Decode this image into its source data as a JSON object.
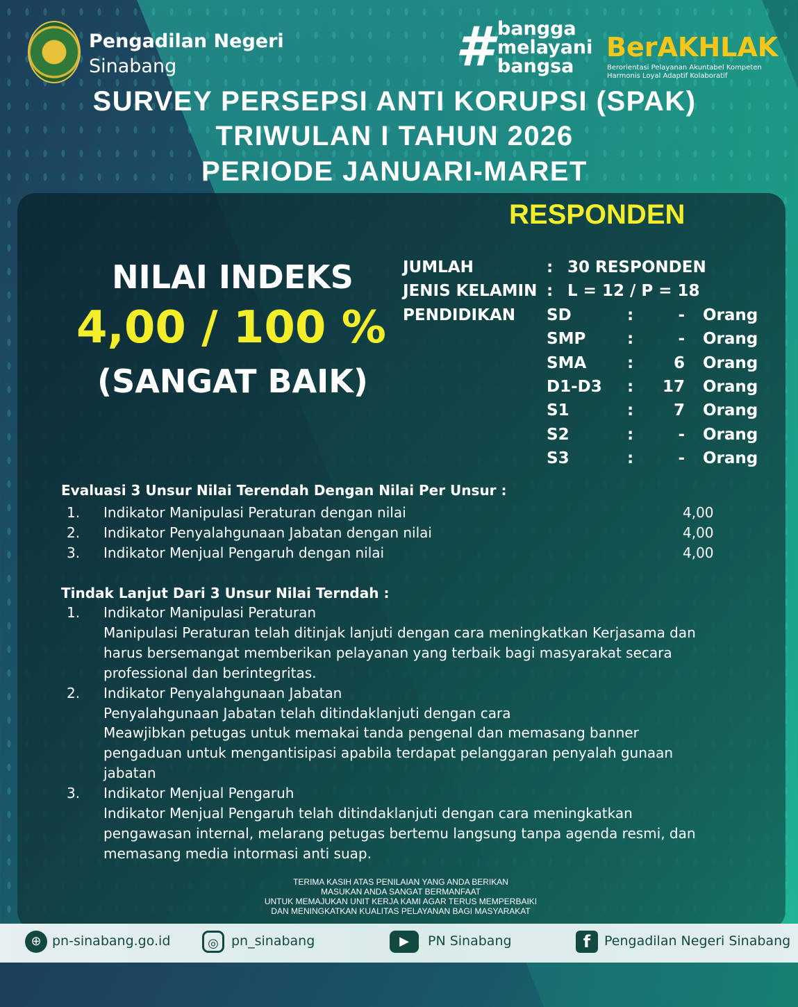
{
  "header": {
    "org_line1": "Pengadilan Negeri",
    "org_line2": "Sinabang",
    "bangga": [
      "bangga",
      "melayani",
      "bangsa"
    ],
    "berakhlak": "BerAKHLAK",
    "berakhlak_sub1": "Berorientasi Pelayanan Akuntabel Kompeten",
    "berakhlak_sub2": "Harmonis Loyal Adaptif Kolaboratif"
  },
  "title": [
    "SURVEY PERSEPSI ANTI KORUPSI (SPAK)",
    "TRIWULAN I TAHUN 2026",
    "PERIODE JANUARI-MARET"
  ],
  "index": {
    "label": "NILAI INDEKS",
    "value": "4,00 / 100 %",
    "category": "(SANGAT BAIK)"
  },
  "responden": {
    "heading": "RESPONDEN",
    "rows": [
      {
        "label": "JUMLAH",
        "colon": ":",
        "value": "30  RESPONDEN"
      },
      {
        "label": "JENIS KELAMIN",
        "colon": ":",
        "value": "L = 12 / P = 18"
      }
    ],
    "pendidikan_label": "PENDIDIKAN",
    "pendidikan": [
      {
        "level": "SD",
        "count": "-",
        "unit": "Orang"
      },
      {
        "level": "SMP",
        "count": "-",
        "unit": "Orang"
      },
      {
        "level": "SMA",
        "count": "6",
        "unit": "Orang"
      },
      {
        "level": "D1-D3",
        "count": "17",
        "unit": "Orang"
      },
      {
        "level": "S1",
        "count": "7",
        "unit": "Orang"
      },
      {
        "level": "S2",
        "count": "-",
        "unit": "Orang"
      },
      {
        "level": "S3",
        "count": "-",
        "unit": "Orang"
      }
    ]
  },
  "evaluasi": {
    "heading": "Evaluasi 3 Unsur Nilai Terendah Dengan Nilai Per Unsur :",
    "items": [
      {
        "num": "1.",
        "text": "Indikator Manipulasi Peraturan dengan nilai",
        "value": "4,00"
      },
      {
        "num": "2.",
        "text": "Indikator Penyalahgunaan Jabatan dengan nilai",
        "value": "4,00"
      },
      {
        "num": "3.",
        "text": "Indikator Menjual Pengaruh dengan nilai",
        "value": "4,00"
      }
    ]
  },
  "tindak": {
    "heading": "Tindak Lanjut Dari 3 Unsur Nilai Terndah :",
    "items": [
      {
        "num": "1.",
        "lines": [
          "Indikator Manipulasi Peraturan",
          "Manipulasi Peraturan telah ditinjak lanjuti dengan cara  meningkatkan Kerjasama dan",
          "harus bersemangat memberikan pelayanan yang terbaik bagi masyarakat secara",
          "professional dan berintegritas."
        ]
      },
      {
        "num": "2.",
        "lines": [
          "Indikator Penyalahgunaan Jabatan",
          "Penyalahgunaan Jabatan telah ditindaklanjuti dengan cara",
          "Meawjibkan petugas untuk memakai tanda pengenal dan  memasang banner",
          "pengaduan untuk mengantisipasi apabila terdapat pelanggaran penyalah gunaan",
          "jabatan"
        ]
      },
      {
        "num": "3.",
        "lines": [
          "Indikator Menjual Pengaruh",
          "Indikator Menjual Pengaruh telah ditindaklanjuti dengan cara meningkatkan",
          "pengawasan internal, melarang petugas bertemu langsung tanpa agenda resmi, dan",
          "memasang media intormasi anti suap."
        ]
      }
    ]
  },
  "thanks": [
    "TERIMA KASIH ATAS PENILAIAN YANG ANDA BERIKAN",
    "MASUKAN ANDA SANGAT BERMANFAAT",
    "UNTUK MEMAJUKAN UNIT KERJA KAMI AGAR TERUS MEMPERBAIKI",
    "DAN MENINGKATKAN KUALITAS PELAYANAN BAGI MASYARAKAT"
  ],
  "footer": {
    "website": "pn-sinabang.go.id",
    "instagram": "pn_sinabang",
    "youtube": "PN Sinabang",
    "facebook": "Pengadilan Negeri Sinabang"
  },
  "colors": {
    "accent_yellow": "#f4ee2a",
    "footer_text": "#124a42"
  }
}
